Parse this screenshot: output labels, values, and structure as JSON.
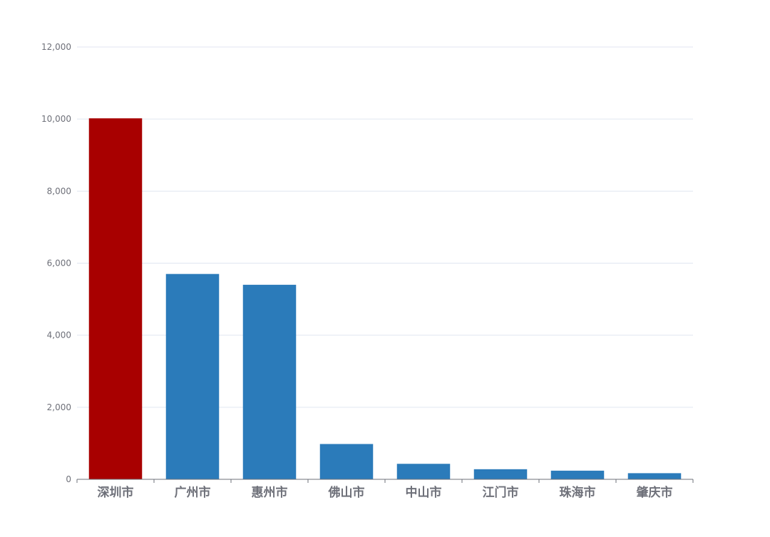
{
  "chart_data": {
    "type": "bar",
    "title": "",
    "xlabel": "",
    "ylabel": "",
    "categories": [
      "深圳市",
      "广州市",
      "惠州市",
      "佛山市",
      "中山市",
      "江门市",
      "珠海市",
      "肇庆市"
    ],
    "values": [
      10020,
      5700,
      5400,
      980,
      430,
      280,
      240,
      170
    ],
    "ylim": [
      0,
      12000
    ],
    "yticks": [
      0,
      2000,
      4000,
      6000,
      8000,
      10000,
      12000
    ],
    "ytick_labels": [
      "0",
      "2,000",
      "4,000",
      "6,000",
      "8,000",
      "10,000",
      "12,000"
    ],
    "grid": true,
    "legend": "none",
    "colors": {
      "default_bar": "#2b7bba",
      "highlight_bar": "#a80000",
      "grid": "#e0e6f1",
      "axis": "#6e7079",
      "label": "#6e7079"
    },
    "highlight_index": 0
  }
}
